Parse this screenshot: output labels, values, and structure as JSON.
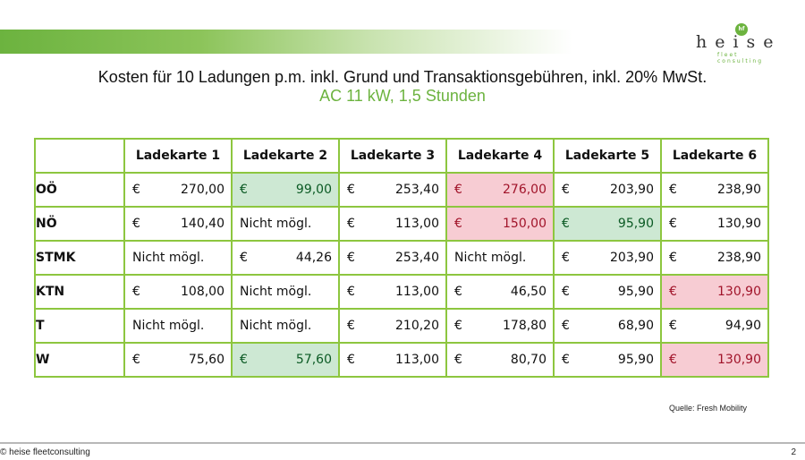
{
  "header": {
    "logo_word": "heise",
    "logo_sub": "fleet consulting",
    "logo_badge": "hf"
  },
  "title": "Kosten für 10 Ladungen p.m. inkl. Grund und Transaktionsgebühren, inkl. 20% MwSt.",
  "subtitle": "AC 11 kW, 1,5 Stunden",
  "colors": {
    "accent_green": "#6cb33f",
    "good_bg": "#cde8d3",
    "bad_bg": "#f7ccd3"
  },
  "table": {
    "columns": [
      "Ladekarte 1",
      "Ladekarte 2",
      "Ladekarte 3",
      "Ladekarte 4",
      "Ladekarte 5",
      "Ladekarte 6"
    ],
    "rows": [
      {
        "label": "OÖ",
        "cells": [
          {
            "cur": "€",
            "amt": "270,00",
            "hl": ""
          },
          {
            "cur": "€",
            "amt": "99,00",
            "hl": "good"
          },
          {
            "cur": "€",
            "amt": "253,40",
            "hl": ""
          },
          {
            "cur": "€",
            "amt": "276,00",
            "hl": "bad"
          },
          {
            "cur": "€",
            "amt": "203,90",
            "hl": ""
          },
          {
            "cur": "€",
            "amt": "238,90",
            "hl": ""
          }
        ]
      },
      {
        "label": "NÖ",
        "cells": [
          {
            "cur": "€",
            "amt": "140,40",
            "hl": ""
          },
          {
            "text": "Nicht mögl.",
            "hl": ""
          },
          {
            "cur": "€",
            "amt": "113,00",
            "hl": ""
          },
          {
            "cur": "€",
            "amt": "150,00",
            "hl": "bad"
          },
          {
            "cur": "€",
            "amt": "95,90",
            "hl": "good"
          },
          {
            "cur": "€",
            "amt": "130,90",
            "hl": ""
          }
        ]
      },
      {
        "label": "STMK",
        "cells": [
          {
            "text": "Nicht mögl.",
            "hl": ""
          },
          {
            "cur": "€",
            "amt": "44,26",
            "hl": ""
          },
          {
            "cur": "€",
            "amt": "253,40",
            "hl": ""
          },
          {
            "text": "Nicht mögl.",
            "hl": ""
          },
          {
            "cur": "€",
            "amt": "203,90",
            "hl": ""
          },
          {
            "cur": "€",
            "amt": "238,90",
            "hl": ""
          }
        ]
      },
      {
        "label": "KTN",
        "cells": [
          {
            "cur": "€",
            "amt": "108,00",
            "hl": ""
          },
          {
            "text": "Nicht mögl.",
            "hl": ""
          },
          {
            "cur": "€",
            "amt": "113,00",
            "hl": ""
          },
          {
            "cur": "€",
            "amt": "46,50",
            "hl": ""
          },
          {
            "cur": "€",
            "amt": "95,90",
            "hl": ""
          },
          {
            "cur": "€",
            "amt": "130,90",
            "hl": "bad"
          }
        ]
      },
      {
        "label": "T",
        "cells": [
          {
            "text": "Nicht mögl.",
            "hl": ""
          },
          {
            "text": "Nicht mögl.",
            "hl": ""
          },
          {
            "cur": "€",
            "amt": "210,20",
            "hl": ""
          },
          {
            "cur": "€",
            "amt": "178,80",
            "hl": ""
          },
          {
            "cur": "€",
            "amt": "68,90",
            "hl": ""
          },
          {
            "cur": "€",
            "amt": "94,90",
            "hl": ""
          }
        ]
      },
      {
        "label": "W",
        "cells": [
          {
            "cur": "€",
            "amt": "75,60",
            "hl": ""
          },
          {
            "cur": "€",
            "amt": "57,60",
            "hl": "good"
          },
          {
            "cur": "€",
            "amt": "113,00",
            "hl": ""
          },
          {
            "cur": "€",
            "amt": "80,70",
            "hl": ""
          },
          {
            "cur": "€",
            "amt": "95,90",
            "hl": ""
          },
          {
            "cur": "€",
            "amt": "130,90",
            "hl": "bad"
          }
        ]
      }
    ]
  },
  "source": "Quelle: Fresh Mobility",
  "footer": {
    "copyright": "© heise fleetconsulting",
    "page_number": "2"
  }
}
